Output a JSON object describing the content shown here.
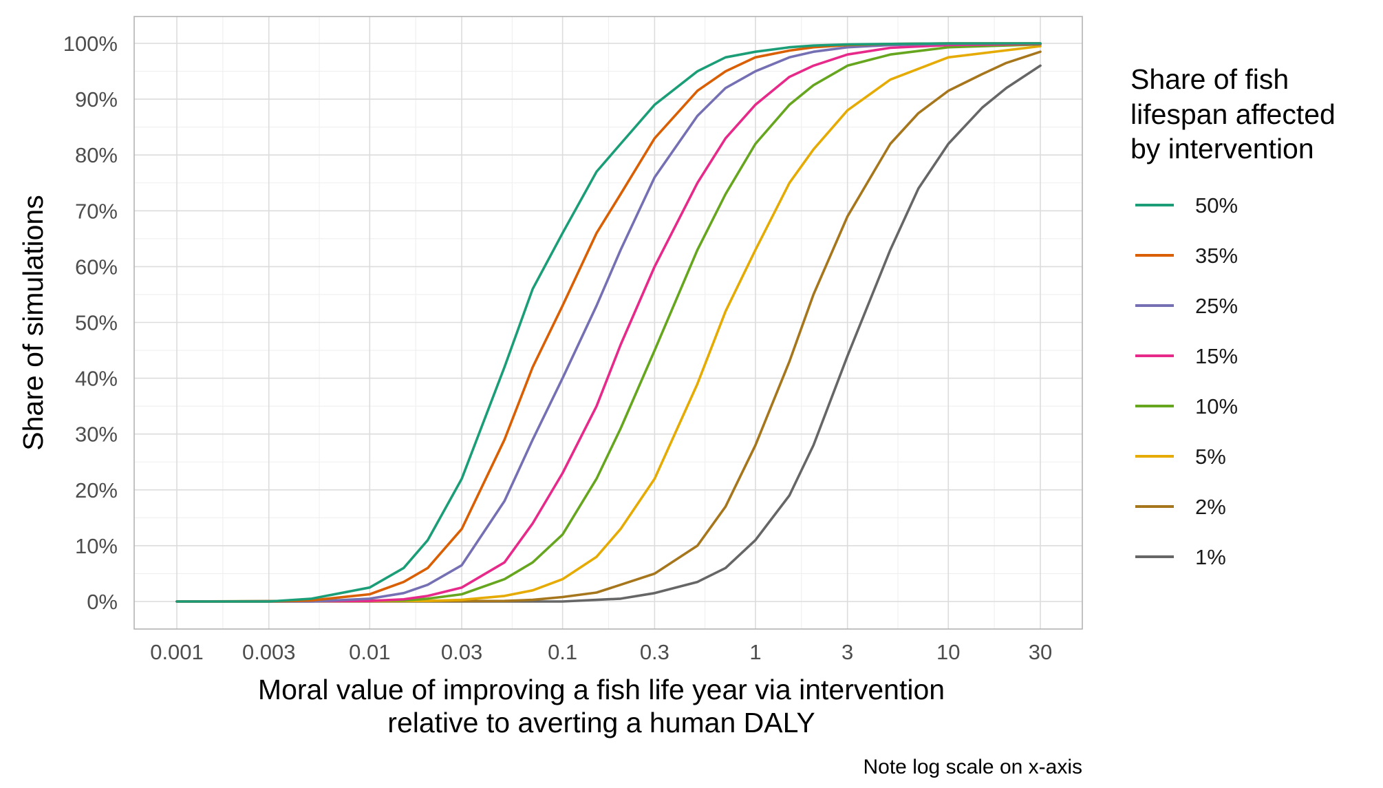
{
  "chart_data": {
    "type": "line",
    "title": "",
    "xlabel_line1": "Moral value of improving a fish life year via intervention",
    "xlabel_line2": "relative to averting a human DALY",
    "ylabel": "Share of simulations",
    "caption": "Note log scale on x-axis",
    "x_scale": "log10",
    "xlim": [
      0.001,
      30
    ],
    "ylim": [
      0,
      100
    ],
    "x_ticks": [
      0.001,
      0.003,
      0.01,
      0.03,
      0.1,
      0.3,
      1,
      3,
      10,
      30
    ],
    "x_tick_labels": [
      "0.001",
      "0.003",
      "0.01",
      "0.03",
      "0.1",
      "0.3",
      "1",
      "3",
      "10",
      "30"
    ],
    "y_ticks": [
      0,
      10,
      20,
      30,
      40,
      50,
      60,
      70,
      80,
      90,
      100
    ],
    "y_tick_labels": [
      "0%",
      "10%",
      "20%",
      "30%",
      "40%",
      "50%",
      "60%",
      "70%",
      "80%",
      "90%",
      "100%"
    ],
    "grid": true,
    "legend_title_lines": [
      "Share of fish",
      "lifespan affected",
      "by intervention"
    ],
    "legend_position": "right",
    "series": [
      {
        "name": "50%",
        "color": "#1b9e77",
        "x": [
          0.001,
          0.003,
          0.005,
          0.01,
          0.015,
          0.02,
          0.03,
          0.05,
          0.07,
          0.1,
          0.15,
          0.2,
          0.3,
          0.5,
          0.7,
          1,
          1.5,
          2,
          3,
          5,
          10,
          30
        ],
        "y": [
          0,
          0,
          0.5,
          2.5,
          6,
          11,
          22,
          42,
          56,
          66,
          77,
          82,
          89,
          95,
          97.5,
          98.5,
          99.3,
          99.6,
          99.8,
          99.9,
          100,
          100
        ]
      },
      {
        "name": "35%",
        "color": "#d95f02",
        "x": [
          0.001,
          0.003,
          0.005,
          0.01,
          0.015,
          0.02,
          0.03,
          0.05,
          0.07,
          0.1,
          0.15,
          0.2,
          0.3,
          0.5,
          0.7,
          1,
          1.5,
          2,
          3,
          5,
          10,
          30
        ],
        "y": [
          0,
          0,
          0.2,
          1.3,
          3.5,
          6,
          13,
          29,
          42,
          53,
          66,
          73,
          83,
          91.5,
          95,
          97.5,
          98.7,
          99.3,
          99.7,
          99.9,
          100,
          100
        ]
      },
      {
        "name": "25%",
        "color": "#7570b3",
        "x": [
          0.001,
          0.005,
          0.01,
          0.015,
          0.02,
          0.03,
          0.05,
          0.07,
          0.1,
          0.15,
          0.2,
          0.3,
          0.5,
          0.7,
          1,
          1.5,
          2,
          3,
          5,
          10,
          30
        ],
        "y": [
          0,
          0,
          0.5,
          1.5,
          3,
          6.5,
          18,
          29,
          40,
          53,
          63,
          76,
          87,
          92,
          95,
          97.5,
          98.5,
          99.3,
          99.7,
          99.9,
          100
        ]
      },
      {
        "name": "15%",
        "color": "#e7298a",
        "x": [
          0.001,
          0.01,
          0.015,
          0.02,
          0.03,
          0.05,
          0.07,
          0.1,
          0.15,
          0.2,
          0.3,
          0.5,
          0.7,
          1,
          1.5,
          2,
          3,
          5,
          10,
          30
        ],
        "y": [
          0,
          0.1,
          0.4,
          1,
          2.5,
          7,
          14,
          23,
          35,
          46,
          60,
          75,
          83,
          89,
          94,
          96,
          98,
          99.2,
          99.7,
          99.9
        ]
      },
      {
        "name": "10%",
        "color": "#66a61e",
        "x": [
          0.001,
          0.015,
          0.02,
          0.03,
          0.05,
          0.07,
          0.1,
          0.15,
          0.2,
          0.3,
          0.5,
          0.7,
          1,
          1.5,
          2,
          3,
          5,
          10,
          30
        ],
        "y": [
          0,
          0.2,
          0.5,
          1.3,
          4,
          7,
          12,
          22,
          31,
          45,
          63,
          73,
          82,
          89,
          92.5,
          96,
          98,
          99.3,
          99.8
        ]
      },
      {
        "name": "5%",
        "color": "#e6ab02",
        "x": [
          0.001,
          0.02,
          0.03,
          0.05,
          0.07,
          0.1,
          0.15,
          0.2,
          0.3,
          0.5,
          0.7,
          1,
          1.5,
          2,
          3,
          5,
          10,
          30
        ],
        "y": [
          0,
          0.1,
          0.3,
          1,
          2,
          4,
          8,
          13,
          22,
          39,
          52,
          63,
          75,
          81,
          88,
          93.5,
          97.5,
          99.5
        ]
      },
      {
        "name": "2%",
        "color": "#a6761d",
        "x": [
          0.001,
          0.05,
          0.07,
          0.1,
          0.15,
          0.2,
          0.3,
          0.5,
          0.7,
          1,
          1.5,
          2,
          3,
          5,
          7,
          10,
          15,
          20,
          30
        ],
        "y": [
          0,
          0.1,
          0.3,
          0.8,
          1.6,
          3,
          5,
          10,
          17,
          28,
          43,
          55,
          69,
          82,
          87.5,
          91.5,
          94.5,
          96.5,
          98.5
        ]
      },
      {
        "name": "1%",
        "color": "#666666",
        "x": [
          0.001,
          0.1,
          0.15,
          0.2,
          0.3,
          0.5,
          0.7,
          1,
          1.5,
          2,
          3,
          5,
          7,
          10,
          15,
          20,
          30
        ],
        "y": [
          0,
          0,
          0.3,
          0.5,
          1.5,
          3.5,
          6,
          11,
          19,
          28,
          44,
          63,
          74,
          82,
          88.5,
          92,
          96
        ]
      }
    ]
  }
}
